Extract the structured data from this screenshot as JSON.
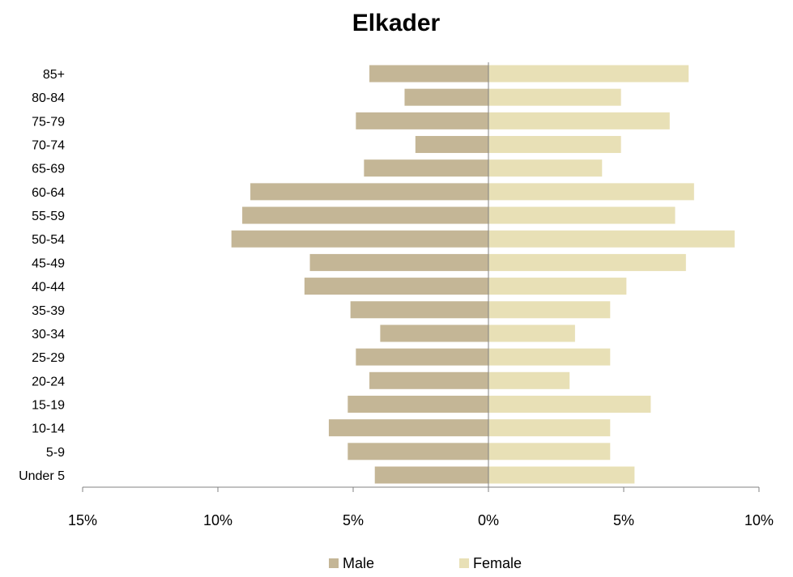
{
  "chart_data": {
    "type": "bar",
    "orientation": "horizontal-population-pyramid",
    "title": "Elkader",
    "categories": [
      "Under 5",
      "5-9",
      "10-14",
      "15-19",
      "20-24",
      "25-29",
      "30-34",
      "35-39",
      "40-44",
      "45-49",
      "50-54",
      "55-59",
      "60-64",
      "65-69",
      "70-74",
      "75-79",
      "80-84",
      "85+"
    ],
    "series": [
      {
        "name": "Male",
        "color": "#c4b696",
        "values": [
          4.2,
          5.2,
          5.9,
          5.2,
          4.4,
          4.9,
          4.0,
          5.1,
          6.8,
          6.6,
          9.5,
          9.1,
          8.8,
          4.6,
          2.7,
          4.9,
          3.1,
          4.4
        ]
      },
      {
        "name": "Female",
        "color": "#e8e0b6",
        "values": [
          5.4,
          4.5,
          4.5,
          6.0,
          3.0,
          4.5,
          3.2,
          4.5,
          5.1,
          7.3,
          9.1,
          6.9,
          7.6,
          4.2,
          4.9,
          6.7,
          4.9,
          7.4
        ]
      }
    ],
    "xlim": [
      -15,
      10
    ],
    "xticks": [
      -15,
      -10,
      -5,
      0,
      5,
      10
    ],
    "xtick_labels": [
      "15%",
      "10%",
      "5%",
      "0%",
      "5%",
      "10%"
    ],
    "xlabel": "",
    "ylabel": "",
    "grid": false,
    "legend_position": "bottom"
  }
}
